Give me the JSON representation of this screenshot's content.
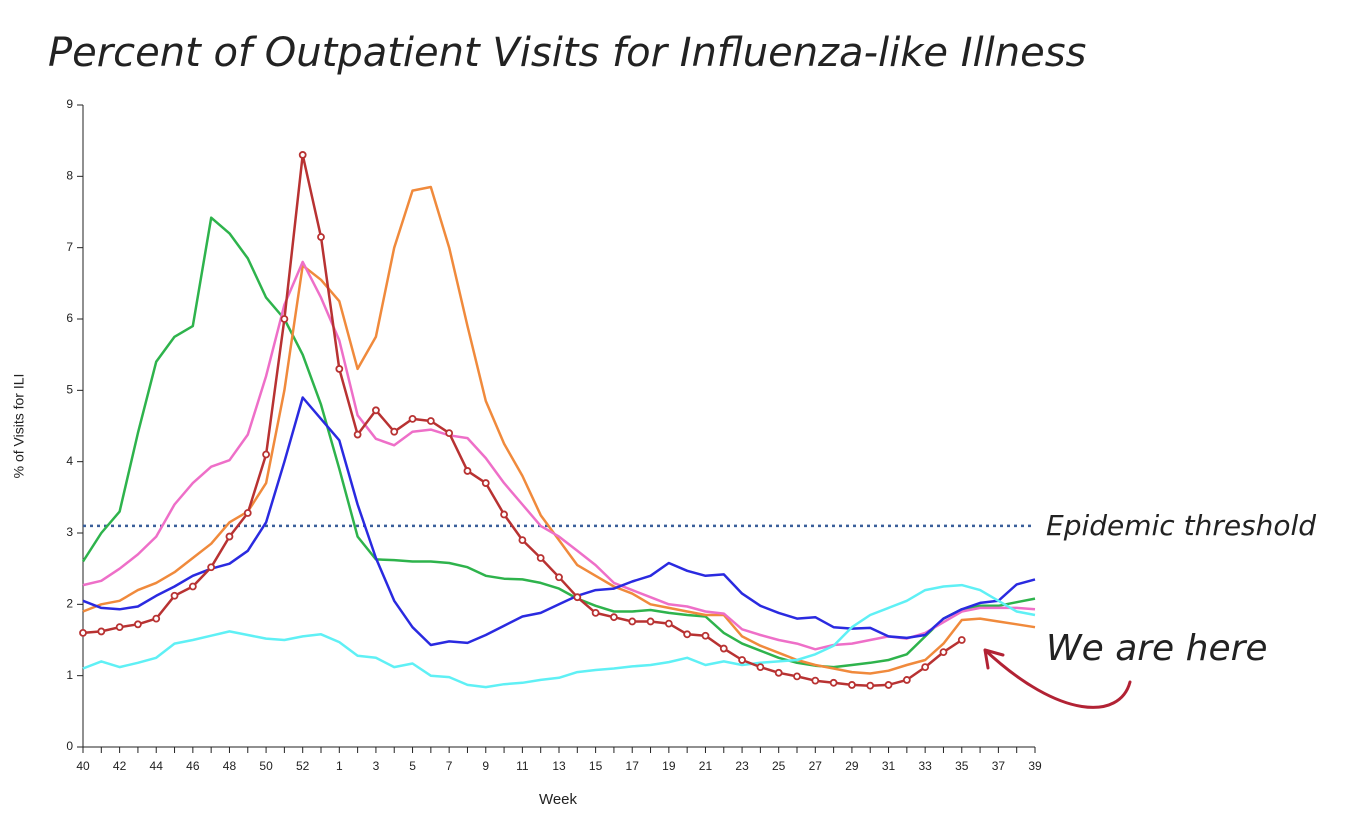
{
  "chart_data": {
    "type": "line",
    "title": "Percent of Outpatient Visits for Influenza-like Illness",
    "y_label": "% of Visits for ILI",
    "x_label": "Week",
    "categories": [
      "40",
      null,
      "42",
      null,
      "44",
      null,
      "46",
      null,
      "48",
      null,
      "50",
      null,
      "52",
      null,
      "1",
      null,
      "3",
      null,
      "5",
      null,
      "7",
      null,
      "9",
      null,
      "11",
      null,
      "13",
      null,
      "15",
      null,
      "17",
      null,
      "19",
      null,
      "21",
      null,
      "23",
      null,
      "25",
      null,
      "27",
      null,
      "29",
      null,
      "31",
      null,
      "33",
      null,
      "35",
      null,
      "37",
      null,
      "39"
    ],
    "ylim": [
      0,
      9
    ],
    "yticks": [
      0,
      1,
      2,
      3,
      4,
      5,
      6,
      7,
      8,
      9
    ],
    "threshold": {
      "value": 3.1,
      "label": "Epidemic threshold",
      "color": "#3a5f9a"
    },
    "annotation": {
      "text": "We are here",
      "color": "#b22234"
    },
    "series": [
      {
        "color": "#2eb34c",
        "values": [
          2.6,
          3.0,
          3.3,
          4.4,
          5.4,
          5.75,
          5.9,
          7.42,
          7.2,
          6.85,
          6.3,
          6.0,
          5.5,
          4.8,
          3.9,
          2.95,
          2.63,
          2.62,
          2.6,
          2.6,
          2.58,
          2.52,
          2.4,
          2.36,
          2.35,
          2.3,
          2.22,
          2.08,
          1.98,
          1.9,
          1.9,
          1.92,
          1.88,
          1.85,
          1.83,
          1.6,
          1.45,
          1.35,
          1.25,
          1.18,
          1.14,
          1.12,
          1.15,
          1.18,
          1.22,
          1.3,
          1.55,
          1.8,
          1.93,
          1.98,
          1.98,
          2.03,
          2.08
        ]
      },
      {
        "color": "#f08a3c",
        "values": [
          1.9,
          2.0,
          2.05,
          2.2,
          2.3,
          2.45,
          2.65,
          2.85,
          3.15,
          3.3,
          3.7,
          5.0,
          6.75,
          6.55,
          6.25,
          5.3,
          5.75,
          7.0,
          7.8,
          7.85,
          7.0,
          5.9,
          4.85,
          4.25,
          3.8,
          3.25,
          2.9,
          2.55,
          2.4,
          2.25,
          2.15,
          2.0,
          1.95,
          1.9,
          1.85,
          1.85,
          1.55,
          1.42,
          1.32,
          1.22,
          1.15,
          1.1,
          1.05,
          1.03,
          1.07,
          1.15,
          1.22,
          1.45,
          1.78,
          1.8,
          1.76,
          1.72,
          1.68
        ]
      },
      {
        "color": "#ee6fc8",
        "values": [
          2.27,
          2.33,
          2.5,
          2.7,
          2.95,
          3.4,
          3.7,
          3.93,
          4.02,
          4.38,
          5.2,
          6.2,
          6.8,
          6.3,
          5.7,
          4.65,
          4.32,
          4.23,
          4.42,
          4.45,
          4.37,
          4.33,
          4.05,
          3.7,
          3.4,
          3.1,
          2.95,
          2.75,
          2.55,
          2.3,
          2.2,
          2.1,
          2.0,
          1.97,
          1.9,
          1.87,
          1.65,
          1.57,
          1.5,
          1.45,
          1.37,
          1.43,
          1.45,
          1.5,
          1.55,
          1.52,
          1.6,
          1.75,
          1.9,
          1.95,
          1.95,
          1.95,
          1.93
        ]
      },
      {
        "color": "#2a2ae0",
        "values": [
          2.05,
          1.95,
          1.93,
          1.97,
          2.12,
          2.25,
          2.4,
          2.5,
          2.57,
          2.75,
          3.15,
          4.0,
          4.9,
          4.6,
          4.3,
          3.4,
          2.65,
          2.05,
          1.68,
          1.43,
          1.48,
          1.46,
          1.57,
          1.7,
          1.83,
          1.88,
          2.0,
          2.12,
          2.2,
          2.22,
          2.32,
          2.4,
          2.58,
          2.47,
          2.4,
          2.42,
          2.15,
          1.98,
          1.88,
          1.8,
          1.82,
          1.68,
          1.66,
          1.67,
          1.55,
          1.53,
          1.57,
          1.8,
          1.93,
          2.02,
          2.05,
          2.28,
          2.35
        ]
      },
      {
        "color": "#5ff0f5",
        "values": [
          1.1,
          1.2,
          1.12,
          1.18,
          1.25,
          1.45,
          1.5,
          1.56,
          1.62,
          1.57,
          1.52,
          1.5,
          1.55,
          1.58,
          1.47,
          1.28,
          1.25,
          1.12,
          1.17,
          1.0,
          0.98,
          0.87,
          0.84,
          0.88,
          0.9,
          0.94,
          0.97,
          1.05,
          1.08,
          1.1,
          1.13,
          1.15,
          1.19,
          1.25,
          1.15,
          1.2,
          1.15,
          1.18,
          1.2,
          1.22,
          1.3,
          1.42,
          1.68,
          1.85,
          1.95,
          2.05,
          2.2,
          2.25,
          2.27,
          2.2,
          2.05,
          1.9,
          1.85
        ]
      },
      {
        "color": "#b83232",
        "markers": true,
        "values": [
          1.6,
          1.62,
          1.68,
          1.72,
          1.8,
          2.12,
          2.25,
          2.52,
          2.95,
          3.28,
          4.1,
          6.0,
          8.3,
          7.15,
          5.3,
          4.38,
          4.72,
          4.42,
          4.6,
          4.57,
          4.4,
          3.87,
          3.7,
          3.26,
          2.9,
          2.65,
          2.38,
          2.1,
          1.88,
          1.82,
          1.76,
          1.76,
          1.73,
          1.58,
          1.56,
          1.38,
          1.22,
          1.12,
          1.04,
          0.99,
          0.93,
          0.9,
          0.87,
          0.86,
          0.87,
          0.94,
          1.12,
          1.33,
          1.5,
          null,
          null,
          null,
          null
        ]
      }
    ]
  }
}
